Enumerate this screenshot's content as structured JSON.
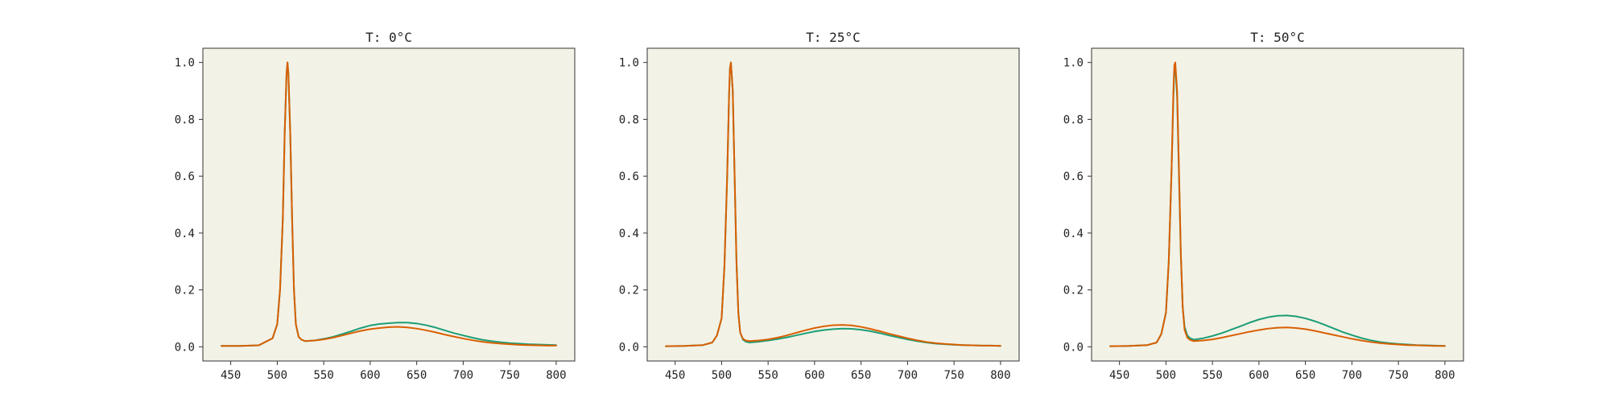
{
  "colors": {
    "background": "#ffffff",
    "plot_bg": "#f3f2e6",
    "series_a": "#1b9e77",
    "series_b": "#d95f02"
  },
  "chart_data": [
    {
      "type": "line",
      "title": "T: 0°C",
      "xlabel": "",
      "ylabel": "",
      "xlim": [
        420,
        820
      ],
      "ylim": [
        -0.05,
        1.05
      ],
      "xticks": [
        450,
        500,
        550,
        600,
        650,
        700,
        750,
        800
      ],
      "yticks": [
        0.0,
        0.2,
        0.4,
        0.6,
        0.8,
        1.0
      ],
      "grid": false,
      "series": [
        {
          "color": "#1b9e77",
          "x": [
            440,
            460,
            480,
            495,
            500,
            503,
            506,
            508,
            510,
            511,
            512,
            514,
            516,
            518,
            520,
            523,
            526,
            530,
            540,
            550,
            560,
            570,
            580,
            590,
            600,
            610,
            620,
            630,
            640,
            650,
            660,
            670,
            680,
            690,
            700,
            710,
            720,
            730,
            740,
            750,
            760,
            770,
            780,
            790,
            800
          ],
          "y": [
            0.003,
            0.003,
            0.005,
            0.03,
            0.08,
            0.2,
            0.45,
            0.75,
            0.96,
            1.0,
            0.96,
            0.75,
            0.45,
            0.2,
            0.08,
            0.035,
            0.025,
            0.02,
            0.022,
            0.028,
            0.035,
            0.045,
            0.055,
            0.066,
            0.075,
            0.08,
            0.083,
            0.085,
            0.085,
            0.082,
            0.076,
            0.068,
            0.058,
            0.048,
            0.04,
            0.032,
            0.025,
            0.02,
            0.016,
            0.013,
            0.011,
            0.009,
            0.008,
            0.007,
            0.006
          ]
        },
        {
          "color": "#d95f02",
          "x": [
            440,
            460,
            480,
            495,
            500,
            503,
            506,
            508,
            510,
            511,
            512,
            514,
            516,
            518,
            520,
            523,
            526,
            530,
            540,
            550,
            560,
            570,
            580,
            590,
            600,
            610,
            620,
            630,
            640,
            650,
            660,
            670,
            680,
            690,
            700,
            710,
            720,
            730,
            740,
            750,
            760,
            770,
            780,
            790,
            800
          ],
          "y": [
            0.003,
            0.003,
            0.005,
            0.03,
            0.08,
            0.2,
            0.45,
            0.75,
            0.96,
            1.0,
            0.96,
            0.75,
            0.45,
            0.2,
            0.08,
            0.035,
            0.025,
            0.02,
            0.022,
            0.026,
            0.032,
            0.04,
            0.048,
            0.056,
            0.062,
            0.066,
            0.069,
            0.07,
            0.068,
            0.064,
            0.058,
            0.051,
            0.043,
            0.036,
            0.029,
            0.023,
            0.018,
            0.014,
            0.011,
            0.009,
            0.007,
            0.006,
            0.005,
            0.004,
            0.004
          ]
        }
      ]
    },
    {
      "type": "line",
      "title": "T: 25°C",
      "xlabel": "",
      "ylabel": "",
      "xlim": [
        420,
        820
      ],
      "ylim": [
        -0.05,
        1.05
      ],
      "xticks": [
        450,
        500,
        550,
        600,
        650,
        700,
        750,
        800
      ],
      "yticks": [
        0.0,
        0.2,
        0.4,
        0.6,
        0.8,
        1.0
      ],
      "grid": false,
      "series": [
        {
          "color": "#1b9e77",
          "x": [
            440,
            460,
            480,
            490,
            495,
            500,
            503,
            506,
            508,
            509,
            510,
            512,
            514,
            516,
            518,
            520,
            523,
            526,
            530,
            540,
            550,
            560,
            570,
            580,
            590,
            600,
            610,
            620,
            630,
            640,
            650,
            660,
            670,
            680,
            690,
            700,
            710,
            720,
            730,
            740,
            750,
            760,
            770,
            780,
            790,
            800
          ],
          "y": [
            0.002,
            0.003,
            0.006,
            0.015,
            0.04,
            0.1,
            0.28,
            0.6,
            0.88,
            0.98,
            1.0,
            0.9,
            0.6,
            0.3,
            0.12,
            0.05,
            0.025,
            0.018,
            0.015,
            0.018,
            0.022,
            0.027,
            0.033,
            0.04,
            0.047,
            0.054,
            0.059,
            0.062,
            0.064,
            0.063,
            0.06,
            0.055,
            0.048,
            0.04,
            0.033,
            0.026,
            0.02,
            0.015,
            0.011,
            0.009,
            0.007,
            0.006,
            0.005,
            0.004,
            0.004,
            0.003
          ]
        },
        {
          "color": "#d95f02",
          "x": [
            440,
            460,
            480,
            490,
            495,
            500,
            503,
            506,
            508,
            509,
            510,
            512,
            514,
            516,
            518,
            520,
            523,
            526,
            530,
            540,
            550,
            560,
            570,
            580,
            590,
            600,
            610,
            620,
            630,
            640,
            650,
            660,
            670,
            680,
            690,
            700,
            710,
            720,
            730,
            740,
            750,
            760,
            770,
            780,
            790,
            800
          ],
          "y": [
            0.002,
            0.003,
            0.006,
            0.015,
            0.04,
            0.1,
            0.28,
            0.6,
            0.88,
            0.98,
            1.0,
            0.9,
            0.6,
            0.3,
            0.12,
            0.05,
            0.028,
            0.022,
            0.02,
            0.022,
            0.026,
            0.032,
            0.04,
            0.049,
            0.058,
            0.066,
            0.072,
            0.076,
            0.077,
            0.075,
            0.07,
            0.063,
            0.055,
            0.046,
            0.038,
            0.03,
            0.023,
            0.017,
            0.013,
            0.01,
            0.008,
            0.006,
            0.005,
            0.004,
            0.004,
            0.003
          ]
        }
      ]
    },
    {
      "type": "line",
      "title": "T: 50°C",
      "xlabel": "",
      "ylabel": "",
      "xlim": [
        420,
        820
      ],
      "ylim": [
        -0.05,
        1.05
      ],
      "xticks": [
        450,
        500,
        550,
        600,
        650,
        700,
        750,
        800
      ],
      "yticks": [
        0.0,
        0.2,
        0.4,
        0.6,
        0.8,
        1.0
      ],
      "grid": false,
      "series": [
        {
          "color": "#1b9e77",
          "x": [
            440,
            460,
            480,
            490,
            495,
            500,
            503,
            506,
            508,
            509,
            510,
            512,
            514,
            516,
            518,
            520,
            523,
            526,
            530,
            540,
            550,
            560,
            570,
            580,
            590,
            600,
            610,
            620,
            630,
            640,
            650,
            660,
            670,
            680,
            690,
            700,
            710,
            720,
            730,
            740,
            750,
            760,
            770,
            780,
            790,
            800
          ],
          "y": [
            0.002,
            0.003,
            0.006,
            0.015,
            0.045,
            0.12,
            0.3,
            0.62,
            0.88,
            0.97,
            0.99,
            0.88,
            0.6,
            0.32,
            0.14,
            0.07,
            0.04,
            0.03,
            0.025,
            0.03,
            0.038,
            0.048,
            0.06,
            0.072,
            0.085,
            0.096,
            0.104,
            0.109,
            0.11,
            0.107,
            0.1,
            0.09,
            0.078,
            0.065,
            0.052,
            0.041,
            0.031,
            0.023,
            0.017,
            0.013,
            0.01,
            0.008,
            0.006,
            0.005,
            0.004,
            0.003
          ]
        },
        {
          "color": "#d95f02",
          "x": [
            440,
            460,
            480,
            490,
            495,
            500,
            503,
            506,
            508,
            509,
            510,
            512,
            514,
            516,
            518,
            520,
            523,
            526,
            530,
            540,
            550,
            560,
            570,
            580,
            590,
            600,
            610,
            620,
            630,
            640,
            650,
            660,
            670,
            680,
            690,
            700,
            710,
            720,
            730,
            740,
            750,
            760,
            770,
            780,
            790,
            800
          ],
          "y": [
            0.002,
            0.003,
            0.006,
            0.015,
            0.045,
            0.12,
            0.3,
            0.62,
            0.9,
            0.99,
            1.0,
            0.9,
            0.62,
            0.33,
            0.14,
            0.06,
            0.032,
            0.024,
            0.02,
            0.022,
            0.026,
            0.032,
            0.039,
            0.046,
            0.053,
            0.059,
            0.064,
            0.067,
            0.068,
            0.066,
            0.062,
            0.056,
            0.049,
            0.042,
            0.035,
            0.028,
            0.022,
            0.017,
            0.013,
            0.01,
            0.008,
            0.006,
            0.005,
            0.004,
            0.003,
            0.003
          ]
        }
      ]
    }
  ]
}
